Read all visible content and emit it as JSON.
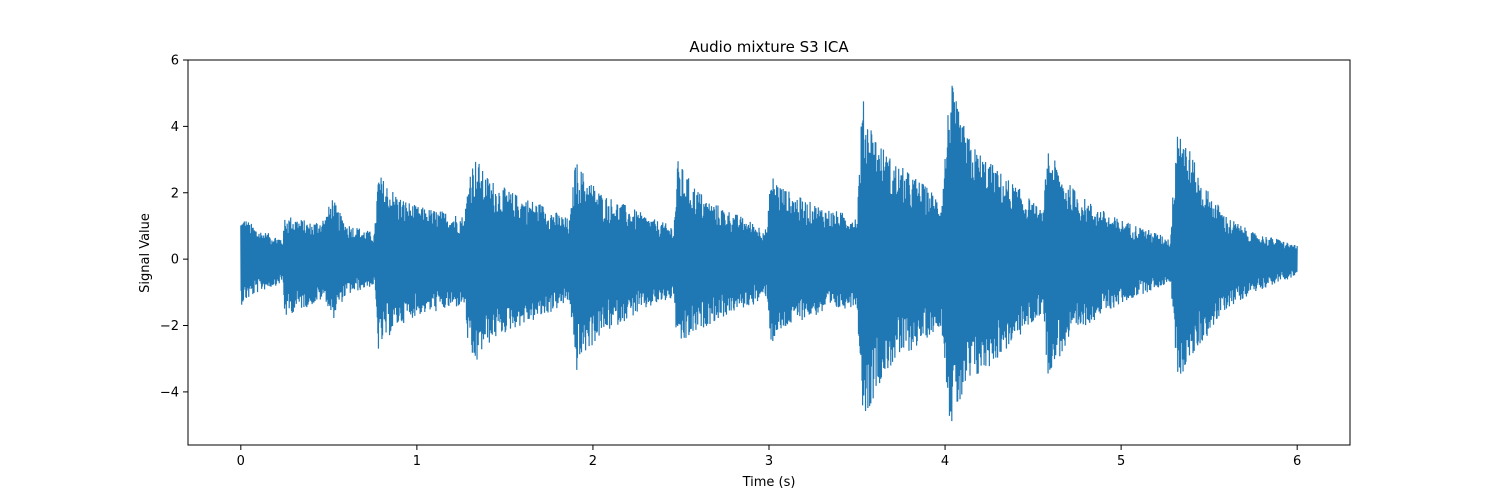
{
  "chart_data": {
    "type": "line",
    "title": "Audio mixture S3 ICA",
    "xlabel": "Time (s)",
    "ylabel": "Signal Value",
    "xlim": [
      -0.3,
      6.3
    ],
    "ylim": [
      -5.6,
      6.0
    ],
    "xticks": [
      0,
      1,
      2,
      3,
      4,
      5,
      6
    ],
    "yticks": [
      -4,
      -2,
      0,
      2,
      4,
      6
    ],
    "xtick_labels": [
      "0",
      "1",
      "2",
      "3",
      "4",
      "5",
      "6"
    ],
    "ytick_labels": [
      "−4",
      "−2",
      "0",
      "2",
      "4",
      "6"
    ],
    "grid": false,
    "series": [
      {
        "color": "#1f77b4",
        "envelope": {
          "t": [
            0.0,
            0.02,
            0.1,
            0.2,
            0.24,
            0.25,
            0.3,
            0.4,
            0.48,
            0.52,
            0.55,
            0.6,
            0.7,
            0.76,
            0.78,
            0.83,
            0.9,
            1.0,
            1.1,
            1.2,
            1.27,
            1.3,
            1.34,
            1.38,
            1.45,
            1.55,
            1.7,
            1.8,
            1.87,
            1.9,
            1.95,
            2.05,
            2.2,
            2.35,
            2.46,
            2.48,
            2.55,
            2.65,
            2.8,
            2.95,
            2.99,
            3.01,
            3.1,
            3.2,
            3.35,
            3.5,
            3.53,
            3.56,
            3.62,
            3.7,
            3.85,
            3.98,
            4.03,
            4.08,
            4.15,
            4.3,
            4.45,
            4.56,
            4.58,
            4.62,
            4.7,
            4.8,
            4.95,
            5.1,
            5.2,
            5.28,
            5.32,
            5.36,
            5.45,
            5.6,
            5.75,
            5.9,
            6.0
          ],
          "upper": [
            1.2,
            1.25,
            0.9,
            0.7,
            0.65,
            1.3,
            1.3,
            1.1,
            1.3,
            1.9,
            1.5,
            1.1,
            0.9,
            0.8,
            2.6,
            2.3,
            1.9,
            1.6,
            1.5,
            1.4,
            1.3,
            2.8,
            3.1,
            2.6,
            2.3,
            2.0,
            1.7,
            1.4,
            1.2,
            3.0,
            2.6,
            2.0,
            1.6,
            1.2,
            1.0,
            3.0,
            2.4,
            1.8,
            1.4,
            1.0,
            0.9,
            2.6,
            2.1,
            1.8,
            1.5,
            1.3,
            4.9,
            4.4,
            3.6,
            3.0,
            2.4,
            1.8,
            5.5,
            4.4,
            3.5,
            2.7,
            2.0,
            1.4,
            3.5,
            3.0,
            2.3,
            1.8,
            1.3,
            1.0,
            0.8,
            0.6,
            4.5,
            3.8,
            2.4,
            1.3,
            0.8,
            0.6,
            0.4
          ],
          "lower": [
            -1.4,
            -1.3,
            -1.0,
            -0.8,
            -0.7,
            -1.8,
            -1.6,
            -1.4,
            -1.2,
            -1.9,
            -1.5,
            -1.1,
            -0.9,
            -0.8,
            -2.8,
            -2.4,
            -2.0,
            -1.7,
            -1.6,
            -1.5,
            -1.4,
            -3.2,
            -3.2,
            -2.7,
            -2.4,
            -2.1,
            -1.8,
            -1.5,
            -1.3,
            -3.5,
            -2.9,
            -2.3,
            -1.8,
            -1.4,
            -1.2,
            -2.8,
            -2.4,
            -2.0,
            -1.6,
            -1.3,
            -1.1,
            -2.6,
            -2.1,
            -1.8,
            -1.6,
            -1.4,
            -4.5,
            -4.7,
            -3.8,
            -3.2,
            -2.6,
            -2.0,
            -5.1,
            -4.5,
            -3.8,
            -3.0,
            -2.2,
            -1.6,
            -3.5,
            -3.2,
            -2.6,
            -2.0,
            -1.5,
            -1.1,
            -0.9,
            -0.7,
            -3.6,
            -3.4,
            -2.6,
            -1.5,
            -1.0,
            -0.7,
            -0.5
          ]
        }
      }
    ]
  }
}
